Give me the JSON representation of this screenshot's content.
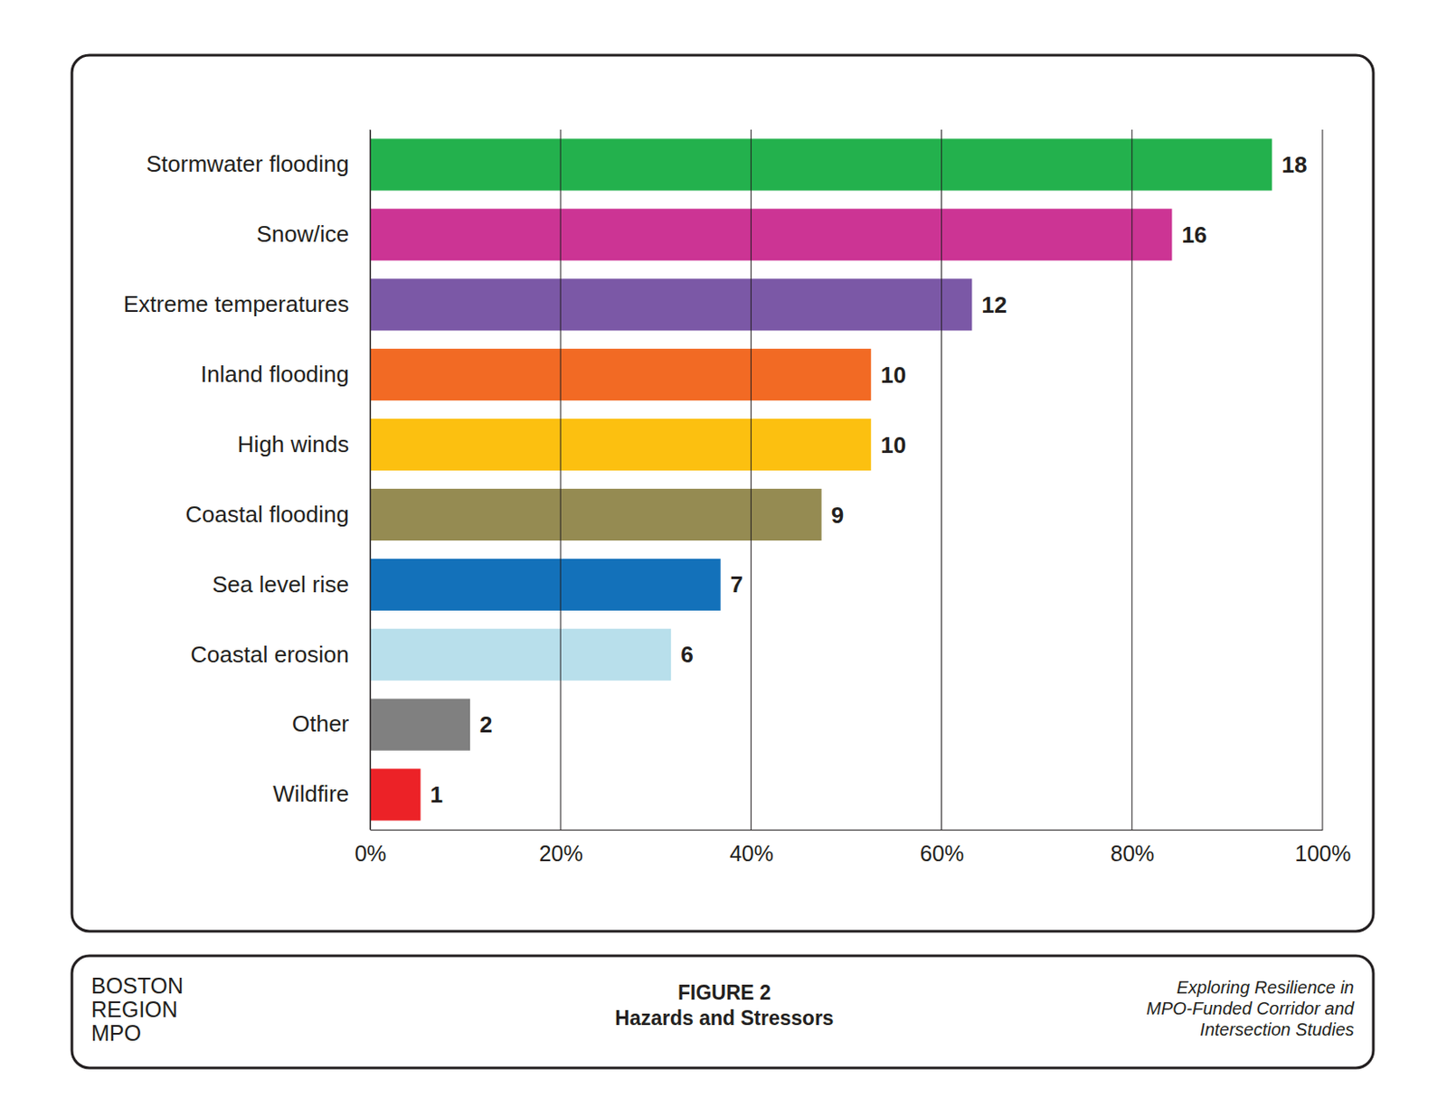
{
  "chart_data": {
    "type": "bar",
    "orientation": "horizontal",
    "title": "Hazards and Stressors",
    "categories": [
      "Stormwater flooding",
      "Snow/ice",
      "Extreme temperatures",
      "Inland flooding",
      "High winds",
      "Coastal flooding",
      "Sea level rise",
      "Coastal erosion",
      "Other",
      "Wildfire"
    ],
    "values": [
      94.7,
      84.2,
      63.2,
      52.6,
      52.6,
      47.4,
      36.8,
      31.6,
      10.5,
      5.3
    ],
    "counts": [
      18,
      16,
      12,
      10,
      10,
      9,
      7,
      6,
      2,
      1
    ],
    "colors": [
      "#23b14d",
      "#cc3494",
      "#7b58a6",
      "#f26a24",
      "#fcc010",
      "#958b52",
      "#1371ba",
      "#b8dfeb",
      "#808080",
      "#ec2227"
    ],
    "xlim": [
      0,
      100
    ],
    "xticks": [
      {
        "value": 0,
        "label": "0%"
      },
      {
        "value": 20,
        "label": "20%"
      },
      {
        "value": 40,
        "label": "40%"
      },
      {
        "value": 60,
        "label": "60%"
      },
      {
        "value": 80,
        "label": "80%"
      },
      {
        "value": 100,
        "label": "100%"
      }
    ],
    "grid": true
  },
  "footer": {
    "organization": [
      "BOSTON",
      "REGION",
      "MPO"
    ],
    "figure": "FIGURE 2",
    "report": [
      "Exploring Resilience in",
      "MPO-Funded Corridor and",
      "Intersection Studies"
    ]
  }
}
